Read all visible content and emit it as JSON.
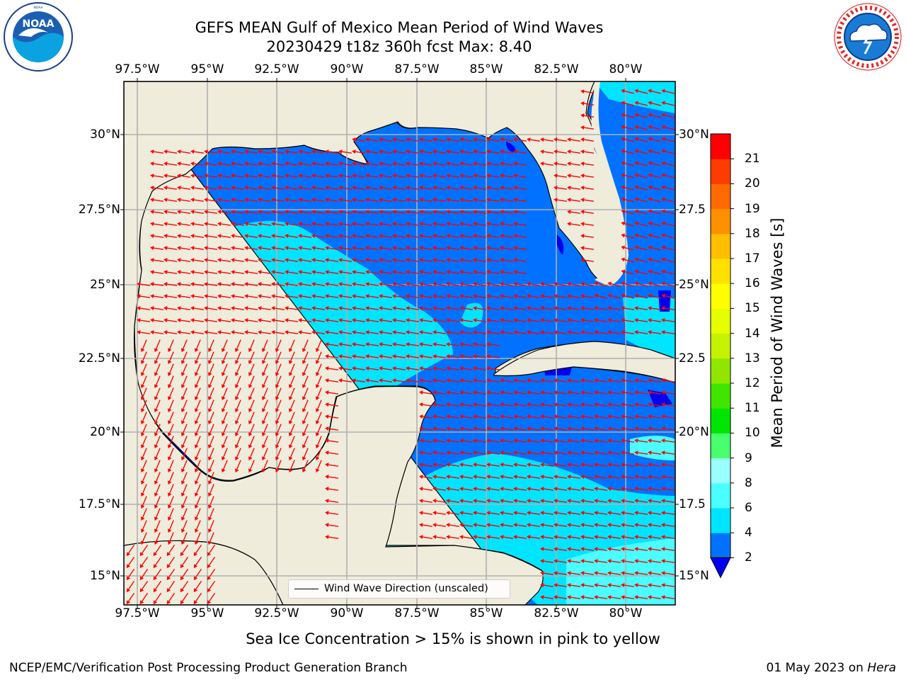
{
  "title_line1": "GEFS MEAN Gulf of Mexico Mean Period of Wind Waves",
  "title_line2": "20230429 t18z 360h fcst   Max: 8.40",
  "logos": {
    "left": {
      "icon": "noaa-logo-icon",
      "ring_text": "NATIONAL OCEANIC AND ATMOSPHERIC ADMINISTRATION · U.S. DEPARTMENT OF COMMERCE",
      "center_text": "NOAA"
    },
    "right": {
      "icon": "nws-logo-icon",
      "ring_text": "NATIONAL WEATHER SERVICE"
    }
  },
  "map": {
    "lon_ticks": [
      "97.5°W",
      "95°W",
      "92.5°W",
      "90°W",
      "87.5°W",
      "85°W",
      "82.5°W",
      "80°W"
    ],
    "lat_ticks_left": [
      "30°N",
      "27.5°N",
      "25°N",
      "22.5°N",
      "20°N",
      "17.5°N",
      "15°N"
    ],
    "lat_ticks_right": [
      "30°N",
      "27.5",
      "25°N",
      "22.5",
      "20°N",
      "17.5",
      "15°N"
    ],
    "land_color": "#efecdc",
    "arrow_color": "#ff0000",
    "gridline_color": "#b0b0b0"
  },
  "colorbar": {
    "label": "Mean Period of Wind Waves [s]",
    "ticks": [
      "2",
      "4",
      "6",
      "8",
      "9",
      "10",
      "11",
      "12",
      "13",
      "14",
      "15",
      "16",
      "17",
      "18",
      "19",
      "20",
      "21"
    ],
    "extend_color": "#0000ee",
    "colors": [
      "#0072ff",
      "#00e5ff",
      "#49ffff",
      "#9affff",
      "#48ff6e",
      "#00e600",
      "#40e600",
      "#90e600",
      "#c4f200",
      "#e6ff00",
      "#ffff00",
      "#ffe100",
      "#ffbe00",
      "#ff9000",
      "#ff6a00",
      "#ff3c00",
      "#ff0000"
    ]
  },
  "legend": {
    "label": "Wind Wave Direction (unscaled)"
  },
  "sea_ice_note": "Sea Ice Concentration > 15% is shown in pink to yellow",
  "footer": {
    "credit": "NCEP/EMC/Verification Post Processing Product Generation Branch",
    "date": "01 May 2023 on",
    "machine": "Hera"
  }
}
